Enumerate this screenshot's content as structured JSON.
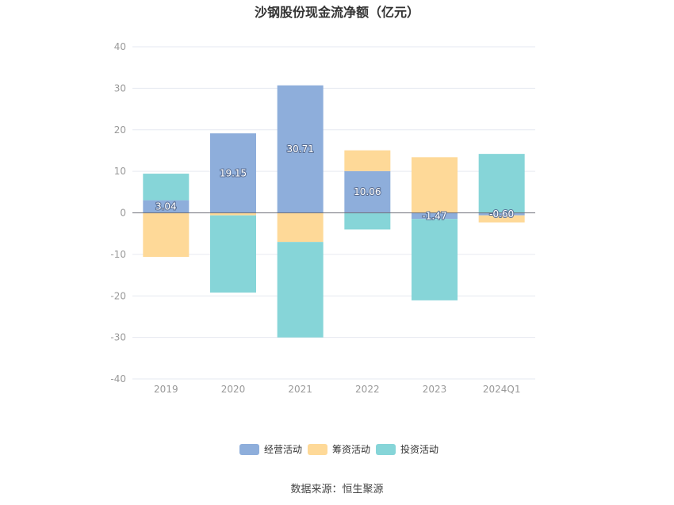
{
  "chart_data": {
    "type": "bar",
    "stacked": true,
    "title": "沙钢股份现金流净额（亿元）",
    "categories": [
      "2019",
      "2020",
      "2021",
      "2022",
      "2023",
      "2024Q1"
    ],
    "ylim": [
      -40,
      40
    ],
    "yticks": [
      40,
      30,
      20,
      10,
      0,
      -10,
      -20,
      -30,
      -40
    ],
    "grid": true,
    "legend_position": "bottom",
    "series": [
      {
        "name": "经营活动",
        "color": "#8eaedb",
        "values": [
          3.04,
          19.15,
          30.71,
          10.06,
          -1.47,
          -0.6
        ],
        "labels": [
          "3.04",
          "19.15",
          "30.71",
          "10.06",
          "-1.47",
          "-0.60"
        ]
      },
      {
        "name": "筹资活动",
        "color": "#fed998",
        "values": [
          -10.6,
          -0.6,
          -7.0,
          5.0,
          13.4,
          -1.7
        ]
      },
      {
        "name": "投资活动",
        "color": "#86d5d8",
        "values": [
          6.4,
          -18.6,
          -23.0,
          -4.0,
          -19.6,
          14.2
        ]
      }
    ]
  },
  "footer": {
    "source": "数据来源：恒生聚源"
  }
}
